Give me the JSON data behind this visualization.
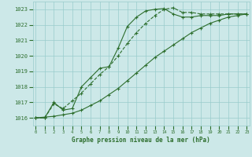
{
  "bg_color": "#cce8e8",
  "grid_color": "#99cccc",
  "line_color": "#2d6e2d",
  "marker_color": "#2d6e2d",
  "xlabel": "Graphe pression niveau de la mer (hPa)",
  "xlabel_color": "#2d6e2d",
  "ylabel_ticks": [
    1016,
    1017,
    1018,
    1019,
    1020,
    1021,
    1022,
    1023
  ],
  "xticks": [
    0,
    1,
    2,
    3,
    4,
    5,
    6,
    7,
    8,
    9,
    10,
    11,
    12,
    13,
    14,
    15,
    16,
    17,
    18,
    19,
    20,
    21,
    22,
    23
  ],
  "ylim": [
    1015.5,
    1023.5
  ],
  "xlim": [
    -0.3,
    23.3
  ],
  "series1_x": [
    0,
    1,
    2,
    3,
    4,
    5,
    6,
    7,
    8,
    9,
    10,
    11,
    12,
    13,
    14,
    15,
    16,
    17,
    18,
    19,
    20,
    21,
    22,
    23
  ],
  "series1_y": [
    1016.0,
    1016.0,
    1016.9,
    1016.6,
    1017.1,
    1017.6,
    1018.2,
    1018.8,
    1019.3,
    1020.0,
    1020.8,
    1021.5,
    1022.1,
    1022.6,
    1023.0,
    1023.1,
    1022.8,
    1022.8,
    1022.7,
    1022.7,
    1022.7,
    1022.7,
    1022.7,
    1022.7
  ],
  "series2_x": [
    0,
    1,
    2,
    3,
    4,
    5,
    6,
    7,
    8,
    9,
    10,
    11,
    12,
    13,
    14,
    15,
    16,
    17,
    18,
    19,
    20,
    21,
    22,
    23
  ],
  "series2_y": [
    1016.0,
    1016.0,
    1017.0,
    1016.5,
    1016.6,
    1018.0,
    1018.6,
    1019.2,
    1019.3,
    1020.5,
    1021.9,
    1022.5,
    1022.9,
    1023.0,
    1023.05,
    1022.7,
    1022.5,
    1022.5,
    1022.6,
    1022.6,
    1022.6,
    1022.7,
    1022.7,
    1022.7
  ],
  "series3_x": [
    0,
    1,
    2,
    3,
    4,
    5,
    6,
    7,
    8,
    9,
    10,
    11,
    12,
    13,
    14,
    15,
    16,
    17,
    18,
    19,
    20,
    21,
    22,
    23
  ],
  "series3_y": [
    1016.0,
    1016.05,
    1016.1,
    1016.2,
    1016.3,
    1016.5,
    1016.8,
    1017.1,
    1017.5,
    1017.9,
    1018.4,
    1018.9,
    1019.4,
    1019.9,
    1020.3,
    1020.7,
    1021.1,
    1021.5,
    1021.8,
    1022.1,
    1022.3,
    1022.5,
    1022.6,
    1022.7
  ]
}
